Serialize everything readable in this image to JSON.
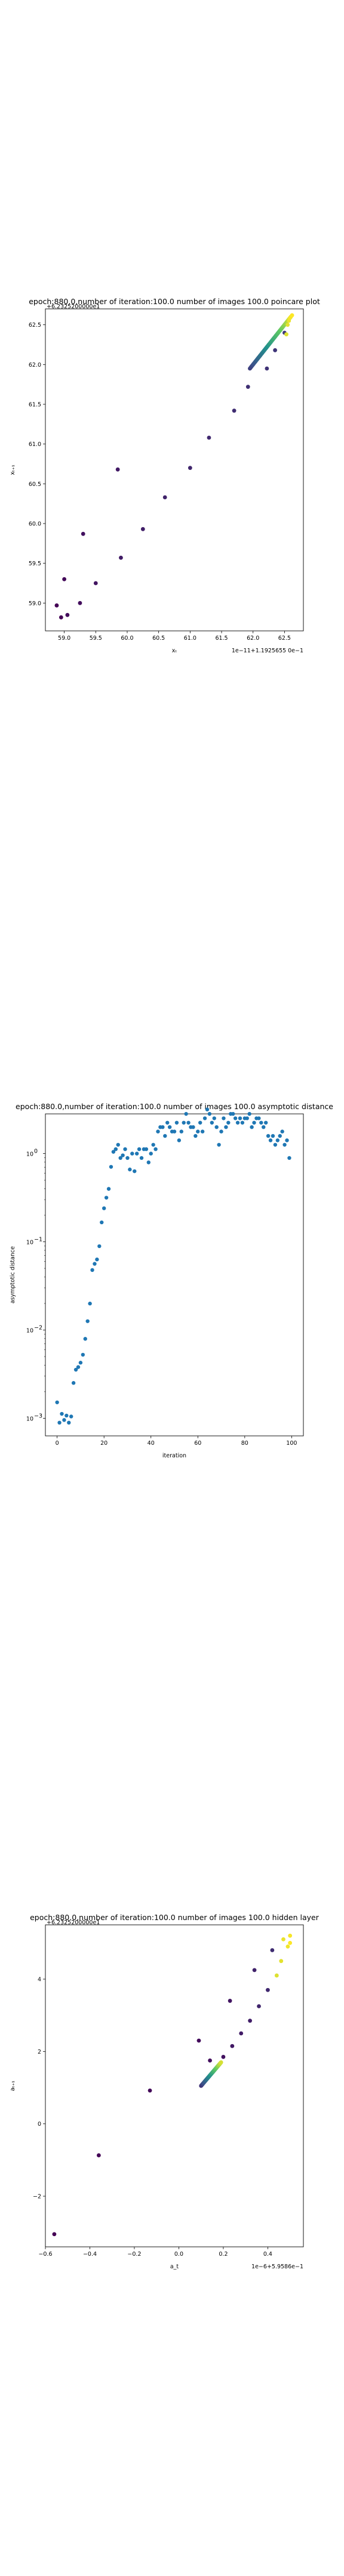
{
  "chart_data": [
    {
      "type": "scatter",
      "title": "epoch:880.0,number of iteration:100.0  number of images 100.0 poincare plot",
      "corner_note": "+6.2325200000e1",
      "xlabel": "xₜ",
      "ylabel": "xₜ₊₁",
      "offset_label": "1e−11+1.1925655 0e−1",
      "xlim": [
        58.7,
        62.8
      ],
      "ylim": [
        58.65,
        62.7
      ],
      "xticks": [
        59.0,
        59.5,
        60.0,
        60.5,
        61.0,
        61.5,
        62.0,
        62.5
      ],
      "xtick_labels": [
        "59.0",
        "59.5",
        "60.0",
        "60.5",
        "61.0",
        "61.5",
        "62.0",
        "62.5"
      ],
      "yticks": [
        59.0,
        59.5,
        60.0,
        60.5,
        61.0,
        61.5,
        62.0,
        62.5
      ],
      "ytick_labels": [
        "59.0",
        "59.5",
        "60.0",
        "60.5",
        "61.0",
        "61.5",
        "62.0",
        "62.5"
      ],
      "grid": false,
      "colormap": "viridis",
      "points": [
        [
          58.88,
          58.97
        ],
        [
          58.95,
          58.82
        ],
        [
          59.0,
          59.3
        ],
        [
          59.05,
          58.85
        ],
        [
          59.25,
          59.0
        ],
        [
          59.3,
          59.87
        ],
        [
          59.5,
          59.25
        ],
        [
          59.85,
          60.68
        ],
        [
          59.9,
          59.57
        ],
        [
          60.25,
          59.93
        ],
        [
          60.6,
          60.33
        ],
        [
          61.0,
          60.7
        ],
        [
          61.3,
          61.08
        ],
        [
          61.7,
          61.42
        ],
        [
          61.92,
          61.72
        ],
        [
          62.22,
          61.95
        ],
        [
          62.35,
          62.18
        ],
        [
          62.5,
          62.4
        ],
        [
          62.53,
          62.38
        ],
        [
          62.55,
          62.5
        ],
        [
          62.57,
          62.55
        ],
        [
          62.58,
          62.58
        ],
        [
          62.6,
          62.6
        ],
        [
          62.62,
          62.62
        ]
      ],
      "cluster": {
        "from": [
          61.95,
          61.95
        ],
        "to": [
          62.6,
          62.6
        ],
        "count": 76
      }
    },
    {
      "type": "scatter",
      "title": "epoch:880.0,number of iteration:100.0  number of images 100.0 asymptotic distance",
      "xlabel": "iteration",
      "ylabel": "asymptotic distance",
      "yscale": "log",
      "xlim": [
        -5,
        105
      ],
      "ylim_exp": [
        -3.2,
        0.45
      ],
      "xticks": [
        0,
        20,
        40,
        60,
        80,
        100
      ],
      "xtick_labels": [
        "0",
        "20",
        "40",
        "60",
        "80",
        "100"
      ],
      "yticks_exp": [
        -3,
        -2,
        -1,
        0
      ],
      "ytick_labels": [
        "10",
        "10",
        "10",
        "10"
      ],
      "ytick_exponents": [
        "−3",
        "−2",
        "−1",
        "0"
      ],
      "grid": false,
      "color": "#1f77b4",
      "x": [
        0,
        1,
        2,
        3,
        4,
        5,
        6,
        7,
        8,
        9,
        10,
        11,
        12,
        13,
        14,
        15,
        16,
        17,
        18,
        19,
        20,
        21,
        22,
        23,
        24,
        25,
        26,
        27,
        28,
        29,
        30,
        31,
        32,
        33,
        34,
        35,
        36,
        37,
        38,
        39,
        40,
        41,
        42,
        43,
        44,
        45,
        46,
        47,
        48,
        49,
        50,
        51,
        52,
        53,
        54,
        55,
        56,
        57,
        58,
        59,
        60,
        61,
        62,
        63,
        64,
        65,
        66,
        67,
        68,
        69,
        70,
        71,
        72,
        73,
        74,
        75,
        76,
        77,
        78,
        79,
        80,
        81,
        82,
        83,
        84,
        85,
        86,
        87,
        88,
        89,
        90,
        91,
        92,
        93,
        94,
        95,
        96,
        97,
        98,
        99
      ],
      "y_exp": [
        -2.82,
        -3.05,
        -2.95,
        -3.02,
        -2.97,
        -3.05,
        -2.98,
        -2.6,
        -2.45,
        -2.42,
        -2.37,
        -2.28,
        -2.1,
        -1.9,
        -1.7,
        -1.32,
        -1.25,
        -1.2,
        -1.05,
        -0.78,
        -0.62,
        -0.5,
        -0.4,
        -0.15,
        0.02,
        0.05,
        0.1,
        -0.05,
        -0.02,
        0.05,
        -0.05,
        -0.18,
        0.0,
        -0.2,
        0.0,
        0.05,
        -0.05,
        0.05,
        0.05,
        -0.1,
        0.0,
        0.1,
        0.05,
        0.25,
        0.3,
        0.3,
        0.2,
        0.35,
        0.3,
        0.25,
        0.25,
        0.35,
        0.15,
        0.25,
        0.35,
        0.45,
        0.35,
        0.3,
        0.3,
        0.2,
        0.25,
        0.35,
        0.25,
        0.4,
        0.5,
        0.45,
        0.35,
        0.4,
        0.3,
        0.1,
        0.25,
        0.4,
        0.3,
        0.35,
        0.45,
        0.45,
        0.4,
        0.35,
        0.4,
        0.35,
        0.4,
        0.4,
        0.45,
        0.3,
        0.35,
        0.4,
        0.4,
        0.35,
        0.3,
        0.35,
        0.2,
        0.15,
        0.2,
        0.1,
        0.15,
        0.2,
        0.25,
        0.1,
        0.15,
        -0.05
      ]
    },
    {
      "type": "scatter",
      "title": "epoch:880.0,number of iteration:100.0  number of images 100.0 hidden layer",
      "corner_note": "+6.2325200000e1",
      "xlabel": "a_t",
      "ylabel": "aₜ₊₁",
      "offset_label": "1e−6+5.9586e−1",
      "xlim": [
        -0.6,
        0.56
      ],
      "ylim": [
        -3.4,
        5.5
      ],
      "xticks": [
        -0.6,
        -0.4,
        -0.2,
        0.0,
        0.2,
        0.4
      ],
      "xtick_labels": [
        "−0.6",
        "−0.4",
        "−0.2",
        "0.0",
        "0.2",
        "0.4"
      ],
      "yticks": [
        -2,
        0,
        2,
        4
      ],
      "ytick_labels": [
        "−2",
        "0",
        "2",
        "4"
      ],
      "grid": false,
      "colormap": "viridis",
      "points": [
        [
          -0.56,
          -3.05
        ],
        [
          -0.36,
          -0.87
        ],
        [
          -0.13,
          0.92
        ],
        [
          0.09,
          2.3
        ],
        [
          0.14,
          1.75
        ],
        [
          0.2,
          1.85
        ],
        [
          0.23,
          3.4
        ],
        [
          0.24,
          2.15
        ],
        [
          0.28,
          2.5
        ],
        [
          0.32,
          2.85
        ],
        [
          0.34,
          4.25
        ],
        [
          0.36,
          3.25
        ],
        [
          0.4,
          3.7
        ],
        [
          0.42,
          4.8
        ],
        [
          0.44,
          4.1
        ],
        [
          0.46,
          4.5
        ],
        [
          0.47,
          5.1
        ],
        [
          0.49,
          4.9
        ],
        [
          0.5,
          5.2
        ],
        [
          0.5,
          5.0
        ]
      ],
      "cluster": {
        "from": [
          0.1,
          1.05
        ],
        "to": [
          0.19,
          1.7
        ],
        "count": 80
      }
    }
  ]
}
